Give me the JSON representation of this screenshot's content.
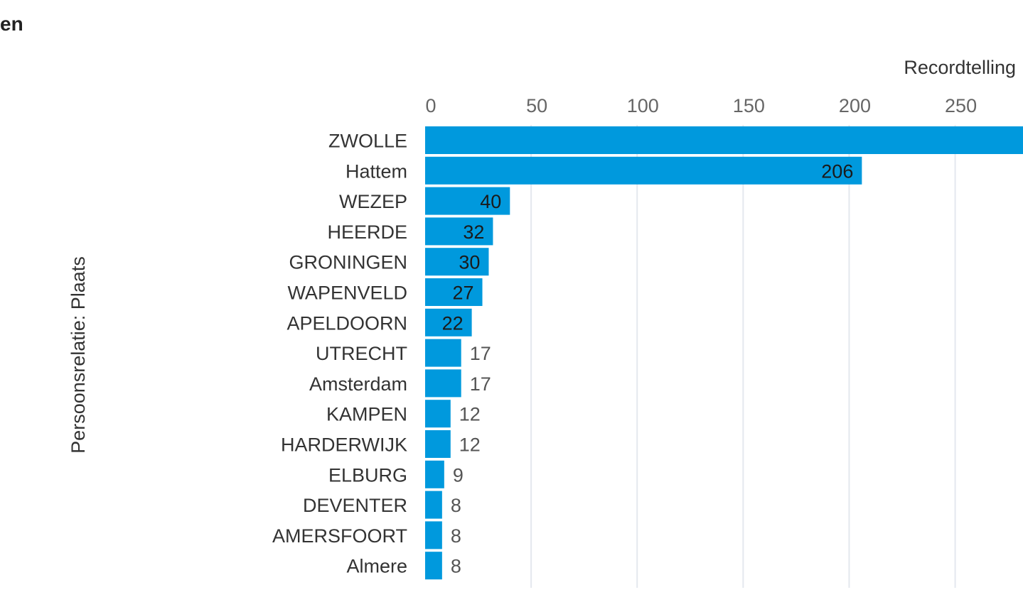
{
  "page": {
    "title": "en"
  },
  "chart_data": {
    "type": "bar",
    "orientation": "horizontal",
    "title": "en",
    "xlabel": "Recordtelling",
    "ylabel": "Persoonsrelatie: Plaats",
    "categories": [
      "ZWOLLE",
      "Hattem",
      "WEZEP",
      "HEERDE",
      "GRONINGEN",
      "WAPENVELD",
      "APELDOORN",
      "UTRECHT",
      "Amsterdam",
      "KAMPEN",
      "HARDERWIJK",
      "ELBURG",
      "DEVENTER",
      "AMERSFOORT",
      "Almere"
    ],
    "values": [
      290,
      206,
      40,
      32,
      30,
      27,
      22,
      17,
      17,
      12,
      12,
      9,
      8,
      8,
      8
    ],
    "data_labels": [
      "",
      "206",
      "40",
      "32",
      "30",
      "27",
      "22",
      "17",
      "17",
      "12",
      "12",
      "9",
      "8",
      "8",
      "8"
    ],
    "x_ticks": [
      0,
      50,
      100,
      150,
      200,
      250
    ],
    "x_tick_labels": [
      "0",
      "50",
      "100",
      "150",
      "200",
      "250"
    ],
    "xlim": [
      0,
      282
    ],
    "axis_position": "top",
    "grid": true,
    "colors": {
      "bar": "#0099DD",
      "grid": "#E4E8EE",
      "label_inside": "#1a1a1a",
      "label_outside": "#555555"
    }
  }
}
